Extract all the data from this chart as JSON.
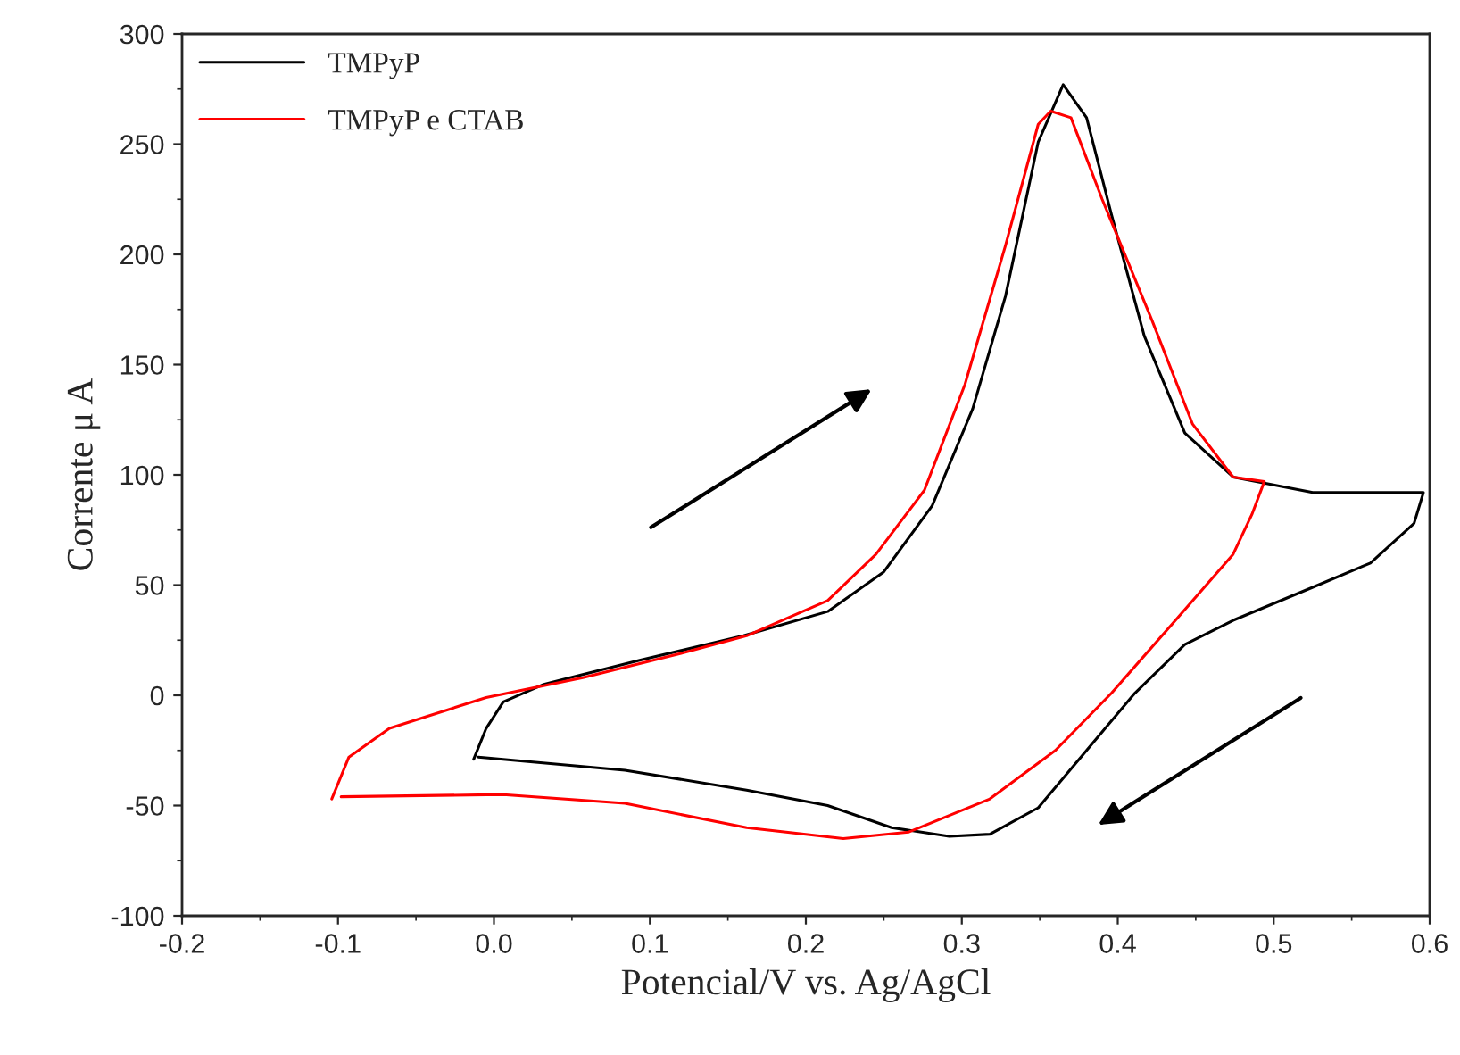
{
  "chart_data": {
    "type": "line",
    "xlabel": "Potencial/V vs. Ag/AgCl",
    "ylabel": "Corrente μ A",
    "xlim": [
      -0.2,
      0.6
    ],
    "xticks": [
      -0.2,
      -0.1,
      {
        "value": 0,
        "label": "0.0"
      },
      0.1,
      0.2,
      0.3,
      0.4,
      0.5,
      0.6
    ],
    "ylim": [
      -100,
      300
    ],
    "yticks": [
      -100,
      -50,
      0,
      50,
      100,
      150,
      200,
      250,
      300
    ],
    "grid": false,
    "legend": "top left",
    "marker": "none",
    "line_style": "solid",
    "series": [
      {
        "name": "TMPyP",
        "color": "#000000",
        "x": [
          -0.013,
          -0.005,
          0.006,
          0.032,
          0.094,
          0.16,
          0.214,
          0.25,
          0.281,
          0.307,
          0.328,
          0.349,
          0.365,
          0.38,
          0.396,
          0.417,
          0.443,
          0.474,
          0.525,
          0.596,
          0.59,
          0.562,
          0.525,
          0.474,
          0.443,
          0.411,
          0.38,
          0.349,
          0.318,
          0.292,
          0.255,
          0.214,
          0.162,
          0.084,
          -0.01
        ],
        "values": [
          -29,
          -15,
          -3,
          5,
          16,
          27,
          38,
          56,
          86,
          130,
          181,
          251,
          277,
          262,
          218,
          163,
          119,
          99,
          92,
          92,
          78,
          60,
          49,
          34,
          23,
          1,
          -25,
          -51,
          -63,
          -64,
          -60,
          -50,
          -43,
          -34,
          -28
        ]
      },
      {
        "name": "TMPyP e CTAB",
        "color": "#ff0000",
        "x": [
          -0.104,
          -0.093,
          -0.067,
          -0.005,
          0.057,
          0.12,
          0.162,
          0.214,
          0.245,
          0.276,
          0.302,
          0.328,
          0.349,
          0.357,
          0.37,
          0.39,
          0.422,
          0.448,
          0.474,
          0.494,
          0.486,
          0.474,
          0.437,
          0.396,
          0.36,
          0.318,
          0.266,
          0.224,
          0.162,
          0.084,
          0.006,
          -0.098
        ],
        "values": [
          -47,
          -28,
          -15,
          -1,
          8,
          19,
          27,
          43,
          64,
          93,
          141,
          204,
          259,
          265,
          262,
          225,
          170,
          123,
          99,
          97,
          82,
          64,
          34,
          1,
          -25,
          -47,
          -62,
          -65,
          -60,
          -49,
          -45,
          -46
        ]
      }
    ]
  }
}
